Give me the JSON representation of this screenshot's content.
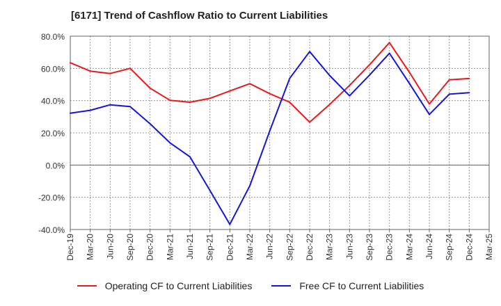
{
  "chart_data": {
    "type": "line",
    "title": "[6171]  Trend of Cashflow Ratio to Current Liabilities",
    "x": [
      "Dec-19",
      "Mar-20",
      "Jun-20",
      "Sep-20",
      "Dec-20",
      "Mar-21",
      "Jun-21",
      "Sep-21",
      "Dec-21",
      "Mar-22",
      "Jun-22",
      "Sep-22",
      "Dec-22",
      "Mar-23",
      "Jun-23",
      "Sep-23",
      "Dec-23",
      "Mar-24",
      "Jun-24",
      "Sep-24",
      "Dec-24",
      "Mar-25"
    ],
    "series": [
      {
        "name": "Operating CF to Current Liabilities",
        "color": "#e8191b",
        "values": [
          63.5,
          58.3,
          56.8,
          60.0,
          47.7,
          40.2,
          39.0,
          41.4,
          46.0,
          50.5,
          44.3,
          39.0,
          26.6,
          37.6,
          49.4,
          62.2,
          76.0,
          57.6,
          37.9,
          52.9,
          53.7,
          null
        ]
      },
      {
        "name": "Free CF to Current Liabilities",
        "color": "#1515d6",
        "values": [
          32.2,
          34.0,
          37.4,
          36.3,
          25.6,
          13.8,
          5.1,
          -15.8,
          -36.8,
          -12.9,
          21.2,
          53.8,
          70.4,
          55.6,
          43.0,
          55.8,
          69.4,
          50.7,
          31.4,
          44.0,
          44.9,
          null
        ]
      }
    ],
    "yticks": [
      "80.0%",
      "60.0%",
      "40.0%",
      "20.0%",
      "0.0%",
      "-20.0%",
      "-40.0%"
    ],
    "ylim": [
      -40,
      80
    ],
    "grid": true,
    "legend_position": "bottom"
  }
}
